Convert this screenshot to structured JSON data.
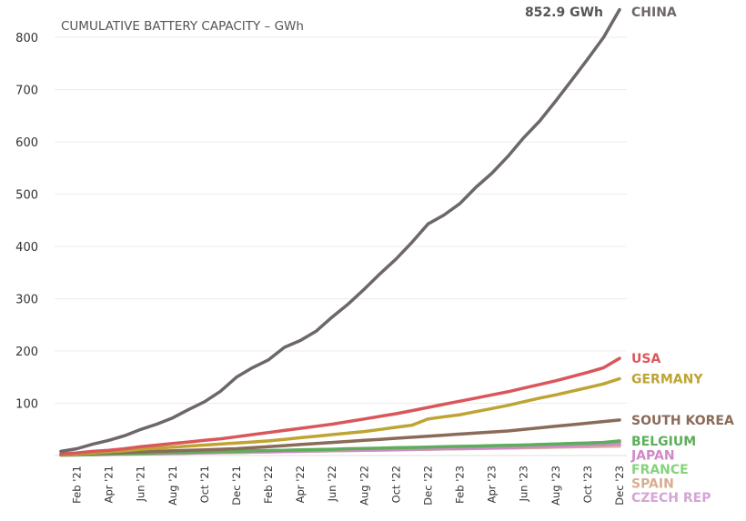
{
  "chart_data": {
    "type": "line",
    "title": "CUMULATIVE BATTERY CAPACITY – GWh",
    "xlabel": "",
    "ylabel": "",
    "ylim": [
      0,
      800
    ],
    "yticks": [
      100,
      200,
      300,
      400,
      500,
      600,
      700,
      800
    ],
    "grid": true,
    "legend": "end-labels",
    "x_tick_labels": [
      "Feb '21",
      "Apr '21",
      "Jun '21",
      "Aug '21",
      "Oct '21",
      "Dec '21",
      "Feb '22",
      "Apr '22",
      "Jun '22",
      "Aug '22",
      "Oct '22",
      "Dec '22",
      "Feb '23",
      "Apr '23",
      "Jun '23",
      "Aug '23",
      "Oct '23",
      "Dec '23"
    ],
    "x": [
      "Jan '21",
      "Feb '21",
      "Mar '21",
      "Apr '21",
      "May '21",
      "Jun '21",
      "Jul '21",
      "Aug '21",
      "Sep '21",
      "Oct '21",
      "Nov '21",
      "Dec '21",
      "Jan '22",
      "Feb '22",
      "Mar '22",
      "Apr '22",
      "May '22",
      "Jun '22",
      "Jul '22",
      "Aug '22",
      "Sep '22",
      "Oct '22",
      "Nov '22",
      "Dec '22",
      "Jan '23",
      "Feb '23",
      "Mar '23",
      "Apr '23",
      "May '23",
      "Jun '23",
      "Jul '23",
      "Aug '23",
      "Sep '23",
      "Oct '23",
      "Nov '23",
      "Dec '23"
    ],
    "annotation": "852.9 GWh",
    "series": [
      {
        "name": "CHINA",
        "color": "#6e6768",
        "values": [
          8,
          13,
          22,
          29,
          38,
          50,
          60,
          72,
          88,
          103,
          123,
          150,
          168,
          183,
          207,
          220,
          238,
          265,
          290,
          318,
          348,
          376,
          408,
          443,
          460,
          482,
          513,
          540,
          572,
          608,
          640,
          678,
          718,
          758,
          800,
          852.9
        ]
      },
      {
        "name": "USA",
        "color": "#d9575b",
        "values": [
          3,
          5,
          8,
          10,
          13,
          17,
          20,
          23,
          26,
          29,
          32,
          36,
          40,
          44,
          48,
          52,
          56,
          60,
          65,
          70,
          75,
          80,
          86,
          92,
          98,
          104,
          110,
          116,
          122,
          129,
          136,
          143,
          151,
          159,
          168,
          186
        ]
      },
      {
        "name": "GERMANY",
        "color": "#bea433",
        "values": [
          2,
          3,
          5,
          7,
          9,
          12,
          14,
          16,
          18,
          20,
          22,
          24,
          26,
          28,
          31,
          34,
          37,
          40,
          43,
          46,
          50,
          54,
          58,
          70,
          74,
          78,
          84,
          90,
          96,
          103,
          110,
          116,
          123,
          130,
          137,
          147
        ]
      },
      {
        "name": "SOUTH KOREA",
        "color": "#8a6a58",
        "values": [
          2,
          3,
          4,
          5,
          6,
          7,
          8,
          9,
          10,
          11,
          12,
          13,
          15,
          17,
          19,
          21,
          23,
          25,
          27,
          29,
          31,
          33,
          35,
          37,
          39,
          41,
          43,
          45,
          47,
          50,
          53,
          56,
          59,
          62,
          65,
          68
        ]
      },
      {
        "name": "BELGIUM",
        "color": "#5cae5a",
        "values": [
          1,
          1.5,
          2,
          3,
          3.5,
          4,
          5,
          5.5,
          6,
          7,
          7.5,
          8,
          9,
          9.5,
          10,
          11,
          11.5,
          12,
          13,
          13.5,
          14,
          15,
          15.5,
          16,
          17,
          17.5,
          18,
          19,
          19.5,
          20,
          21,
          22,
          23,
          24,
          25,
          28
        ]
      },
      {
        "name": "JAPAN",
        "color": "#d089c7",
        "values": [
          1,
          1.5,
          2,
          2.5,
          3,
          3.5,
          4,
          4.5,
          5,
          5.5,
          6,
          6.5,
          7,
          7.5,
          8,
          8.5,
          9,
          9.5,
          10,
          10.5,
          11,
          11.5,
          12,
          12.5,
          13,
          13.5,
          14,
          14.5,
          15,
          16,
          17,
          18,
          19,
          20,
          21,
          23
        ]
      },
      {
        "name": "FRANCE",
        "color": "#86d37c",
        "values": [
          1,
          1.5,
          2,
          2.5,
          3,
          3.5,
          4,
          5,
          5.5,
          6,
          7,
          7.5,
          8,
          9,
          9.5,
          10,
          11,
          11.5,
          12,
          13,
          13.5,
          14,
          15,
          15.5,
          16,
          17,
          17.5,
          18,
          19,
          20,
          21,
          22,
          23,
          24,
          25,
          26
        ]
      },
      {
        "name": "SPAIN",
        "color": "#d8ae92",
        "values": [
          0.5,
          1,
          1.5,
          2,
          2.5,
          3,
          3.5,
          4,
          4.5,
          5,
          5.5,
          6,
          6.5,
          7,
          7.5,
          8,
          8.5,
          9,
          9.5,
          10,
          10.5,
          11,
          11.5,
          12,
          12.5,
          13,
          13.5,
          14,
          14.5,
          15,
          15.5,
          16,
          17,
          18,
          19,
          20
        ]
      },
      {
        "name": "CZECH REP",
        "color": "#d4a5d6",
        "values": [
          0.5,
          1,
          1.5,
          2,
          2.5,
          3,
          3.5,
          4,
          4.5,
          5,
          5.5,
          6,
          6.5,
          7,
          7.5,
          8,
          8.5,
          9,
          9.5,
          10,
          10.5,
          11,
          11.5,
          12,
          12.5,
          13,
          13.5,
          14,
          14.5,
          15,
          15.5,
          16,
          16.5,
          17,
          17.5,
          18
        ]
      }
    ]
  }
}
